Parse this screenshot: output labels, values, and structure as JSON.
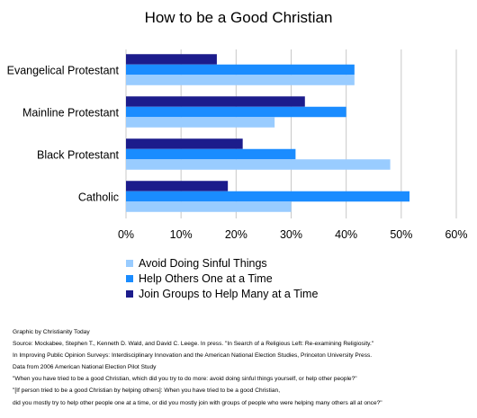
{
  "chart_data": {
    "type": "bar",
    "orientation": "horizontal",
    "title": "How to be a Good Christian",
    "categories": [
      "Evangelical Protestant",
      "Mainline Protestant",
      "Black Protestant",
      "Catholic"
    ],
    "series": [
      {
        "name": "Avoid Doing Sinful Things",
        "color": "#99ccff",
        "values": [
          41.5,
          27,
          48,
          30
        ]
      },
      {
        "name": "Help Others One at a Time",
        "color": "#1a8cff",
        "values": [
          41.5,
          40,
          30.8,
          51.5
        ]
      },
      {
        "name": "Join Groups to Help Many at a Time",
        "color": "#1c1c8c",
        "values": [
          16.5,
          32.5,
          21.2,
          18.5
        ]
      }
    ],
    "xticks": [
      "0%",
      "10%",
      "20%",
      "30%",
      "40%",
      "50%",
      "60%"
    ],
    "xlim": [
      0,
      60
    ],
    "grid": true,
    "legend_position": "bottom"
  },
  "notes": [
    "Graphic by Christianity Today",
    "Source: Mockabee, Stephen T., Kenneth D. Wald, and David C. Leege. In press. \"In Search of a Religious Left: Re-examining Religiosity.\"",
    "In Improving Public Opinion Surveys:  Interdisciplinary Innovation and the American National Election Studies, Princeton University Press.",
    "Data from 2006 American National Election Pilot Study",
    "\"When you have tried to be a good Christian, which did you try to do more: avoid doing sinful things yourself, or help other people?\"",
    "\"[If person tried to be a good Christian by helping others]: When you have tried to be a good Christian,",
    "did you mostly try to help other people one at a time, or did you mostly join with groups of people who were helping many others all at once?\""
  ]
}
